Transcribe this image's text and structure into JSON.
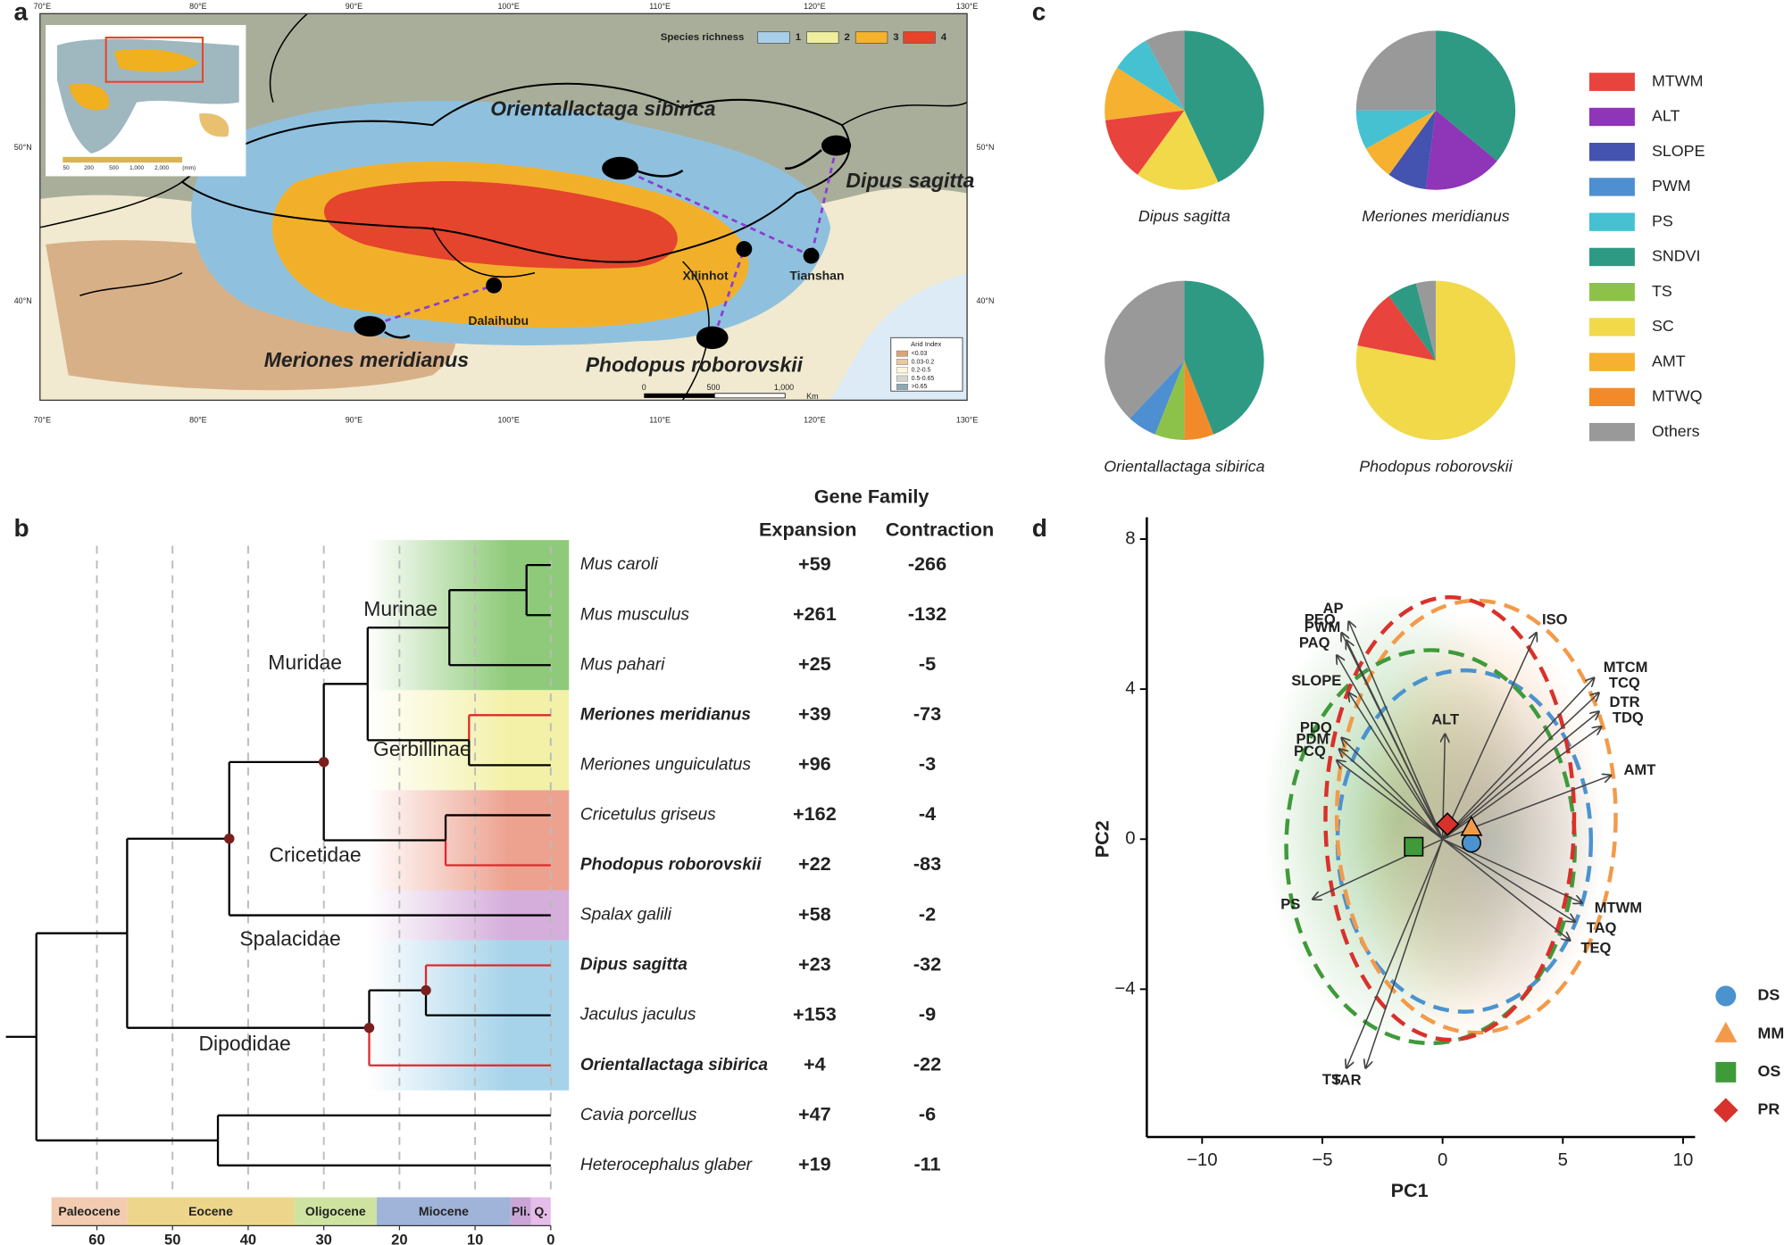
{
  "panel_labels": [
    "a",
    "b",
    "c",
    "d"
  ],
  "map": {
    "lon_ticks": [
      "70°E",
      "80°E",
      "90°E",
      "100°E",
      "110°E",
      "120°E",
      "130°E"
    ],
    "lat_ticks": [
      "40°N",
      "50°N"
    ],
    "species_richness": {
      "title": "Species richness",
      "classes": [
        "1",
        "2",
        "3",
        "4"
      ],
      "colors": [
        "#a9cfe8",
        "#eef0a0",
        "#f5b22c",
        "#e8432a"
      ]
    },
    "species_labels": [
      "Orientallactaga sibirica",
      "Dipus sagitta",
      "Meriones meridianus",
      "Phodopus roborovskii"
    ],
    "localities": [
      "Dalaihubu",
      "Xilinhot",
      "Tianshan"
    ],
    "arid_index": {
      "title": "Arid Index",
      "classes": [
        "<0.03",
        "0.03-0.2",
        "0.2-0.5",
        "0.5-0.65",
        ">0.65"
      ],
      "colors": [
        "#d9a47a",
        "#e8c9a6",
        "#fdf6dc",
        "#d4d6cc",
        "#8ea9b5"
      ]
    },
    "scale_bar": [
      "0",
      "500",
      "1,000",
      "Km"
    ],
    "inset_scale": [
      "50",
      "200",
      "500",
      "1,000",
      "2,000",
      "(mm)"
    ]
  },
  "phylogeny": {
    "header": "Gene Family",
    "expansion_label": "Expansion",
    "contraction_label": "Contraction",
    "time_ticks": [
      60,
      50,
      40,
      30,
      20,
      10,
      0
    ],
    "epochs": [
      {
        "name": "Paleocene",
        "start": 66,
        "end": 56,
        "color": "#f3cbb0"
      },
      {
        "name": "Eocene",
        "start": 56,
        "end": 33.9,
        "color": "#edd68c"
      },
      {
        "name": "Oligocene",
        "start": 33.9,
        "end": 23,
        "color": "#cfe3a0"
      },
      {
        "name": "Miocene",
        "start": 23,
        "end": 5.3,
        "color": "#9fb4d8"
      },
      {
        "name": "Pli.",
        "start": 5.3,
        "end": 2.6,
        "color": "#c9a6d6"
      },
      {
        "name": "Q.",
        "start": 2.6,
        "end": 0,
        "color": "#e5bde8"
      }
    ],
    "clades": [
      {
        "name": "Murinae",
        "color": "#8fca7a"
      },
      {
        "name": "Gerbillinae",
        "color": "#f3f1a8"
      },
      {
        "name": "Muridae",
        "color": null
      },
      {
        "name": "Cricetidae",
        "color": "#eda290"
      },
      {
        "name": "Spalacidae",
        "color": "#d5aedb"
      },
      {
        "name": "Dipodidae",
        "color": "#a6d3ea"
      }
    ],
    "tree": {
      "age": 68,
      "children": [
        {
          "age": 56,
          "children": [
            {
              "age": 42.5,
              "marked": true,
              "children": [
                {
                  "age": 30,
                  "marked": true,
                  "children": [
                    {
                      "age": 24.2,
                      "children": [
                        {
                          "age": 13.4,
                          "children": [
                            {
                              "age": 3.2,
                              "children": [
                                {
                                  "species": "Mus caroli",
                                  "expansion": "+59",
                                  "contraction": "-266"
                                },
                                {
                                  "species": "Mus musculus",
                                  "expansion": "+261",
                                  "contraction": "-132"
                                }
                              ]
                            },
                            {
                              "species": "Mus pahari",
                              "expansion": "+25",
                              "contraction": "-5"
                            }
                          ]
                        },
                        {
                          "age": 10.8,
                          "children": [
                            {
                              "species": "Meriones meridianus",
                              "expansion": "+39",
                              "contraction": "-73",
                              "bold": true,
                              "branch_color": "#e0282c"
                            },
                            {
                              "species": "Meriones unguiculatus",
                              "expansion": "+96",
                              "contraction": "-3"
                            }
                          ]
                        }
                      ]
                    },
                    {
                      "age": 13.9,
                      "children": [
                        {
                          "species": "Cricetulus griseus",
                          "expansion": "+162",
                          "contraction": "-4"
                        },
                        {
                          "species": "Phodopus roborovskii",
                          "expansion": "+22",
                          "contraction": "-83",
                          "bold": true,
                          "branch_color": "#e0282c"
                        }
                      ]
                    }
                  ]
                },
                {
                  "species": "Spalax galili",
                  "expansion": "+58",
                  "contraction": "-2"
                }
              ]
            },
            {
              "age": 24,
              "marked": true,
              "children": [
                {
                  "age": 16.5,
                  "marked": true,
                  "children": [
                    {
                      "species": "Dipus sagitta",
                      "expansion": "+23",
                      "contraction": "-32",
                      "bold": true,
                      "branch_color": "#e0282c"
                    },
                    {
                      "species": "Jaculus jaculus",
                      "expansion": "+153",
                      "contraction": "-9"
                    }
                  ]
                },
                {
                  "species": "Orientallactaga sibirica",
                  "expansion": "+4",
                  "contraction": "-22",
                  "bold": true,
                  "branch_color": "#e0282c"
                }
              ]
            }
          ]
        },
        {
          "age": 44,
          "children": [
            {
              "species": "Cavia porcellus",
              "expansion": "+47",
              "contraction": "-6"
            },
            {
              "species": "Heterocephalus glaber",
              "expansion": "+19",
              "contraction": "-11"
            }
          ]
        }
      ]
    }
  },
  "pie_legend": {
    "labels": [
      "MTWM",
      "ALT",
      "SLOPE",
      "PWM",
      "PS",
      "SNDVI",
      "TS",
      "SC",
      "AMT",
      "MTWQ",
      "Others"
    ],
    "colors": [
      "#e8433d",
      "#8e35b8",
      "#4452b0",
      "#4d8fd0",
      "#45c1d2",
      "#2e9a84",
      "#8dc24a",
      "#f1d94a",
      "#f5b12f",
      "#f28a2a",
      "#999999"
    ]
  },
  "chart_data": [
    {
      "type": "pie",
      "title": "Dipus sagitta",
      "categories": [
        "SNDVI",
        "SC",
        "MTWM",
        "AMT",
        "PS",
        "Others"
      ],
      "values": [
        43,
        17,
        13,
        11,
        8,
        8
      ]
    },
    {
      "type": "pie",
      "title": "Meriones meridianus",
      "categories": [
        "SNDVI",
        "ALT",
        "SLOPE",
        "AMT",
        "PS",
        "Others"
      ],
      "values": [
        36,
        16,
        8,
        7,
        8,
        25
      ]
    },
    {
      "type": "pie",
      "title": "Orientallactaga sibirica",
      "categories": [
        "SNDVI",
        "MTWQ",
        "TS",
        "PWM",
        "Others"
      ],
      "values": [
        44,
        6,
        6,
        6,
        38
      ]
    },
    {
      "type": "pie",
      "title": "Phodopus roborovskii",
      "categories": [
        "SC",
        "MTWM",
        "SNDVI",
        "Others"
      ],
      "values": [
        78,
        12,
        6,
        4
      ]
    },
    {
      "type": "scatter",
      "x_label": "PC1",
      "y_label": "PC2",
      "xlim": [
        -12.3,
        10.5
      ],
      "ylim": [
        -7.94,
        8.58
      ],
      "xticks": [
        {
          "value": -10,
          "label": "−10"
        },
        {
          "value": -5,
          "label": "−5"
        },
        0,
        5,
        10
      ],
      "yticks": [
        {
          "value": -4,
          "label": "−4"
        },
        0,
        4,
        8
      ],
      "series": [
        {
          "name": "DS",
          "color": "#4b93cf",
          "marker": "circle",
          "centroid": [
            1.2,
            -0.1
          ],
          "ellipse": {
            "center": [
              0.9,
              -0.05
            ],
            "radii": [
              5.27,
              4.55
            ]
          }
        },
        {
          "name": "MM",
          "color": "#f39a4a",
          "marker": "triangle",
          "centroid": [
            1.2,
            0.3
          ],
          "ellipse": {
            "center": [
              1.4,
              0.6
            ],
            "radii": [
              5.8,
              5.76
            ]
          }
        },
        {
          "name": "OS",
          "color": "#3f9a3a",
          "marker": "square",
          "centroid": [
            -1.2,
            -0.2
          ],
          "ellipse": {
            "center": [
              -0.5,
              -0.2
            ],
            "radii": [
              6.0,
              5.24
            ]
          }
        },
        {
          "name": "PR",
          "color": "#d9312b",
          "marker": "diamond",
          "centroid": [
            0.2,
            0.4
          ],
          "ellipse": {
            "center": [
              0.3,
              0.55
            ],
            "radii": [
              5.17,
              5.9
            ]
          }
        }
      ],
      "arrows": [
        {
          "label": "AP",
          "x": -3.9,
          "y": 5.8
        },
        {
          "label": "PEQ",
          "x": -4.2,
          "y": 5.5
        },
        {
          "label": "PWM",
          "x": -4.0,
          "y": 5.3
        },
        {
          "label": "PAQ",
          "x": -4.4,
          "y": 4.9
        },
        {
          "label": "SLOPE",
          "x": -3.9,
          "y": 3.9
        },
        {
          "label": "PDQ",
          "x": -4.2,
          "y": 2.7
        },
        {
          "label": "PDM",
          "x": -4.3,
          "y": 2.4
        },
        {
          "label": "PCQ",
          "x": -4.4,
          "y": 2.1
        },
        {
          "label": "ALT",
          "x": 0.1,
          "y": 2.8
        },
        {
          "label": "ISO",
          "x": 3.9,
          "y": 5.5
        },
        {
          "label": "MTCM",
          "x": 6.3,
          "y": 4.3
        },
        {
          "label": "TCQ",
          "x": 6.5,
          "y": 3.9
        },
        {
          "label": "DTR",
          "x": 6.5,
          "y": 3.4
        },
        {
          "label": "TDQ",
          "x": 6.6,
          "y": 3.0
        },
        {
          "label": "AMT",
          "x": 7.0,
          "y": 1.7
        },
        {
          "label": "MTWM",
          "x": 5.8,
          "y": -1.7
        },
        {
          "label": "TAQ",
          "x": 5.5,
          "y": -2.2
        },
        {
          "label": "TEQ",
          "x": 5.3,
          "y": -2.7
        },
        {
          "label": "PS",
          "x": -5.4,
          "y": -1.6
        },
        {
          "label": "TS",
          "x": -4.0,
          "y": -6.1
        },
        {
          "label": "TAR",
          "x": -3.2,
          "y": -6.1
        }
      ]
    }
  ]
}
